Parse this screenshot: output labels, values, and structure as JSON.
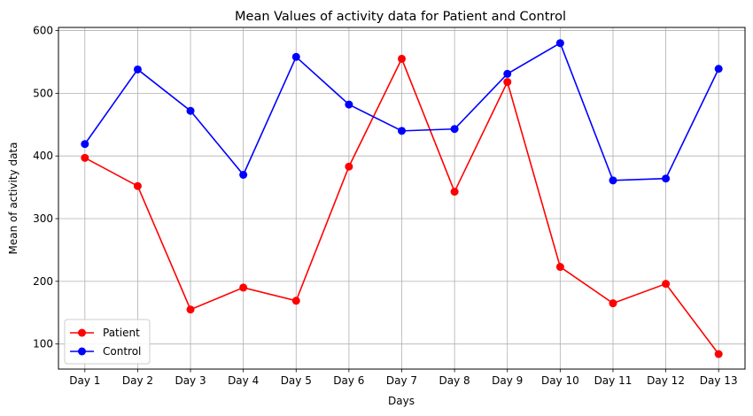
{
  "chart_data": {
    "type": "line",
    "title": "Mean Values of activity data for Patient and Control",
    "xlabel": "Days",
    "ylabel": "Mean of activity data",
    "categories": [
      "Day 1",
      "Day 2",
      "Day 3",
      "Day 4",
      "Day 5",
      "Day 6",
      "Day 7",
      "Day 8",
      "Day 9",
      "Day 10",
      "Day 11",
      "Day 12",
      "Day 13"
    ],
    "ylim": [
      60,
      605
    ],
    "yticks": [
      100,
      200,
      300,
      400,
      500,
      600
    ],
    "grid": true,
    "legend_position": "lower-left",
    "series": [
      {
        "name": "Patient",
        "color": "#ff0000",
        "marker": "circle",
        "values": [
          397,
          352,
          155,
          190,
          169,
          383,
          555,
          343,
          518,
          223,
          165,
          196,
          84
        ]
      },
      {
        "name": "Control",
        "color": "#0000ff",
        "marker": "circle",
        "values": [
          419,
          538,
          472,
          370,
          558,
          482,
          440,
          443,
          531,
          580,
          361,
          364,
          539
        ]
      }
    ]
  }
}
